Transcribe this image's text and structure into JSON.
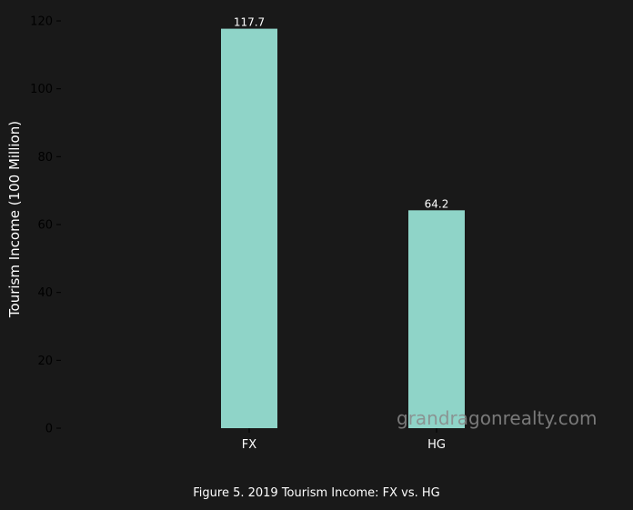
{
  "chart_data": {
    "type": "bar",
    "categories": [
      "FX",
      "HG"
    ],
    "values": [
      117.7,
      64.2
    ],
    "value_labels": [
      "117.7",
      "64.2"
    ],
    "title": "",
    "xlabel": "",
    "ylabel": "Tourism Income (100 Million)",
    "ylim": [
      0,
      120
    ],
    "yticks": [
      0,
      20,
      40,
      60,
      80,
      100,
      120
    ],
    "grid": false,
    "bar_color": "#8fd4c8"
  },
  "caption": "Figure 5. 2019 Tourism Income: FX vs. HG",
  "watermark": "grandragonrealty.com",
  "colors": {
    "background": "#191919",
    "tick_label": "#000000",
    "axis_label": "#ffffff",
    "value_label": "#ffffff"
  }
}
